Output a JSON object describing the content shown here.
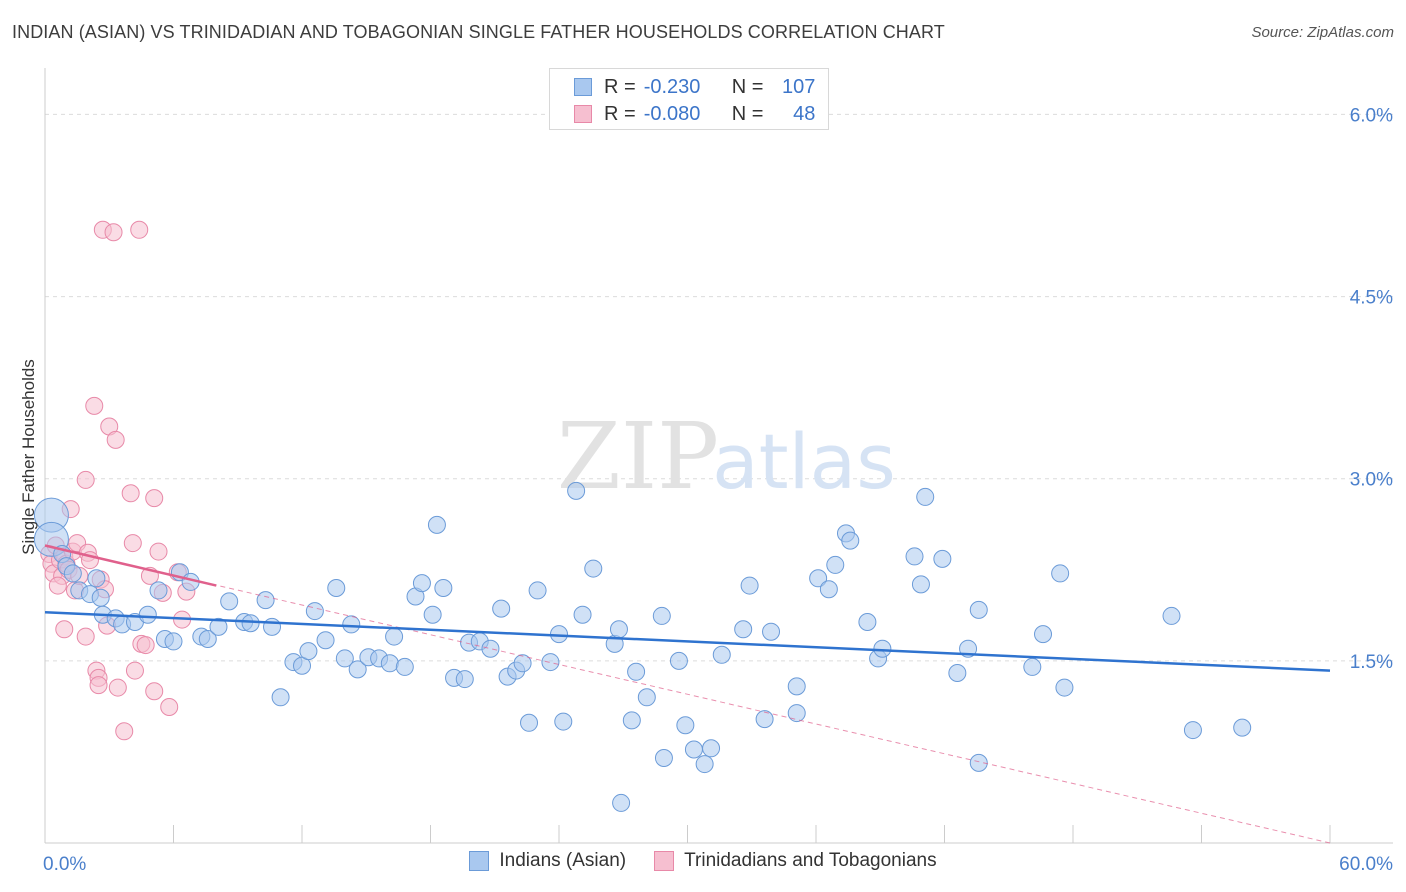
{
  "title": "INDIAN (ASIAN) VS TRINIDADIAN AND TOBAGONIAN SINGLE FATHER HOUSEHOLDS CORRELATION CHART",
  "source": "Source: ZipAtlas.com",
  "watermark": {
    "zip": "ZIP",
    "atlas": "atlas"
  },
  "colors": {
    "blue_fill": "#a9c8ef",
    "blue_stroke": "#6b9bd8",
    "blue_line": "#2f73cf",
    "pink_fill": "#f6bfd0",
    "pink_stroke": "#e889a8",
    "pink_line": "#e0608c",
    "axis_text": "#4a7fcb",
    "grid": "#dcdcdc"
  },
  "stats": [
    {
      "r_label": "R =",
      "r_value": "-0.230",
      "n_label": "N =",
      "n_value": "107"
    },
    {
      "r_label": "R =",
      "r_value": "-0.080",
      "n_label": "N =",
      "n_value": "48"
    }
  ],
  "legend": [
    {
      "label": "Indians (Asian)"
    },
    {
      "label": "Trinidadians and Tobagonians"
    }
  ],
  "chart_data": {
    "type": "scatter",
    "title": "INDIAN (ASIAN) VS TRINIDADIAN AND TOBAGONIAN SINGLE FATHER HOUSEHOLDS CORRELATION CHART",
    "xlabel": "",
    "ylabel": "Single Father Households",
    "xlim": [
      0,
      60
    ],
    "ylim": [
      0,
      6.3
    ],
    "x_tick_labels": [
      "0.0%",
      "60.0%"
    ],
    "y_ticks": [
      1.5,
      3.0,
      4.5,
      6.0
    ],
    "y_tick_labels": [
      "1.5%",
      "3.0%",
      "4.5%",
      "6.0%"
    ],
    "grid": true,
    "series": [
      {
        "name": "Indians (Asian)",
        "trend": {
          "x": [
            0,
            60
          ],
          "y": [
            1.9,
            1.42
          ]
        },
        "points": [
          {
            "x": 0.3,
            "y": 2.7,
            "big": true
          },
          {
            "x": 0.3,
            "y": 2.5,
            "big": true
          },
          {
            "x": 0.8,
            "y": 2.38
          },
          {
            "x": 1.0,
            "y": 2.28
          },
          {
            "x": 1.3,
            "y": 2.22
          },
          {
            "x": 1.6,
            "y": 2.08
          },
          {
            "x": 2.1,
            "y": 2.05
          },
          {
            "x": 2.6,
            "y": 2.02
          },
          {
            "x": 2.4,
            "y": 2.18
          },
          {
            "x": 2.7,
            "y": 1.88
          },
          {
            "x": 3.3,
            "y": 1.85
          },
          {
            "x": 3.6,
            "y": 1.8
          },
          {
            "x": 4.2,
            "y": 1.82
          },
          {
            "x": 4.8,
            "y": 1.88
          },
          {
            "x": 5.3,
            "y": 2.08
          },
          {
            "x": 5.6,
            "y": 1.68
          },
          {
            "x": 6.0,
            "y": 1.66
          },
          {
            "x": 6.3,
            "y": 2.23
          },
          {
            "x": 6.8,
            "y": 2.15
          },
          {
            "x": 7.3,
            "y": 1.7
          },
          {
            "x": 7.6,
            "y": 1.68
          },
          {
            "x": 8.1,
            "y": 1.78
          },
          {
            "x": 8.6,
            "y": 1.99
          },
          {
            "x": 9.3,
            "y": 1.82
          },
          {
            "x": 9.6,
            "y": 1.81
          },
          {
            "x": 10.3,
            "y": 2.0
          },
          {
            "x": 10.6,
            "y": 1.78
          },
          {
            "x": 11.0,
            "y": 1.2
          },
          {
            "x": 11.6,
            "y": 1.49
          },
          {
            "x": 12.0,
            "y": 1.46
          },
          {
            "x": 12.3,
            "y": 1.58
          },
          {
            "x": 12.6,
            "y": 1.91
          },
          {
            "x": 13.1,
            "y": 1.67
          },
          {
            "x": 13.6,
            "y": 2.1
          },
          {
            "x": 14.0,
            "y": 1.52
          },
          {
            "x": 14.3,
            "y": 1.8
          },
          {
            "x": 14.6,
            "y": 1.43
          },
          {
            "x": 15.1,
            "y": 1.53
          },
          {
            "x": 15.6,
            "y": 1.52
          },
          {
            "x": 16.1,
            "y": 1.48
          },
          {
            "x": 16.3,
            "y": 1.7
          },
          {
            "x": 16.8,
            "y": 1.45
          },
          {
            "x": 17.3,
            "y": 2.03
          },
          {
            "x": 17.6,
            "y": 2.14
          },
          {
            "x": 18.1,
            "y": 1.88
          },
          {
            "x": 18.3,
            "y": 2.62
          },
          {
            "x": 18.6,
            "y": 2.1
          },
          {
            "x": 19.1,
            "y": 1.36
          },
          {
            "x": 19.6,
            "y": 1.35
          },
          {
            "x": 19.8,
            "y": 1.65
          },
          {
            "x": 20.3,
            "y": 1.66
          },
          {
            "x": 20.8,
            "y": 1.6
          },
          {
            "x": 21.3,
            "y": 1.93
          },
          {
            "x": 21.6,
            "y": 1.37
          },
          {
            "x": 22.0,
            "y": 1.42
          },
          {
            "x": 22.3,
            "y": 1.48
          },
          {
            "x": 22.6,
            "y": 0.99
          },
          {
            "x": 23.0,
            "y": 2.08
          },
          {
            "x": 23.6,
            "y": 1.49
          },
          {
            "x": 24.0,
            "y": 1.72
          },
          {
            "x": 24.2,
            "y": 1.0
          },
          {
            "x": 24.8,
            "y": 2.9
          },
          {
            "x": 25.1,
            "y": 1.88
          },
          {
            "x": 25.6,
            "y": 2.26
          },
          {
            "x": 26.6,
            "y": 1.64
          },
          {
            "x": 26.8,
            "y": 1.76
          },
          {
            "x": 26.9,
            "y": 0.33
          },
          {
            "x": 27.4,
            "y": 1.01
          },
          {
            "x": 27.6,
            "y": 1.41
          },
          {
            "x": 28.1,
            "y": 1.2
          },
          {
            "x": 28.8,
            "y": 1.87
          },
          {
            "x": 28.9,
            "y": 0.7
          },
          {
            "x": 29.6,
            "y": 1.5
          },
          {
            "x": 29.9,
            "y": 0.97
          },
          {
            "x": 30.3,
            "y": 0.77
          },
          {
            "x": 30.8,
            "y": 0.65
          },
          {
            "x": 31.1,
            "y": 0.78
          },
          {
            "x": 31.6,
            "y": 1.55
          },
          {
            "x": 32.6,
            "y": 1.76
          },
          {
            "x": 32.9,
            "y": 2.12
          },
          {
            "x": 33.6,
            "y": 1.02
          },
          {
            "x": 33.9,
            "y": 1.74
          },
          {
            "x": 35.1,
            "y": 1.29
          },
          {
            "x": 35.1,
            "y": 1.07
          },
          {
            "x": 36.1,
            "y": 2.18
          },
          {
            "x": 36.6,
            "y": 2.09
          },
          {
            "x": 36.9,
            "y": 2.29
          },
          {
            "x": 37.4,
            "y": 2.55
          },
          {
            "x": 37.6,
            "y": 2.49
          },
          {
            "x": 38.4,
            "y": 1.82
          },
          {
            "x": 38.9,
            "y": 1.52
          },
          {
            "x": 39.1,
            "y": 1.6
          },
          {
            "x": 40.6,
            "y": 2.36
          },
          {
            "x": 40.9,
            "y": 2.13
          },
          {
            "x": 41.1,
            "y": 2.85
          },
          {
            "x": 41.9,
            "y": 2.34
          },
          {
            "x": 42.6,
            "y": 1.4
          },
          {
            "x": 43.1,
            "y": 1.6
          },
          {
            "x": 43.6,
            "y": 1.92
          },
          {
            "x": 43.6,
            "y": 0.66
          },
          {
            "x": 46.1,
            "y": 1.45
          },
          {
            "x": 46.6,
            "y": 1.72
          },
          {
            "x": 47.4,
            "y": 2.22
          },
          {
            "x": 47.6,
            "y": 1.28
          },
          {
            "x": 52.6,
            "y": 1.87
          },
          {
            "x": 53.6,
            "y": 0.93
          },
          {
            "x": 55.9,
            "y": 0.95
          }
        ]
      },
      {
        "name": "Trinidadians and Tobagonians",
        "trend": {
          "x": [
            0,
            8
          ],
          "y": [
            2.45,
            2.12
          ]
        },
        "trend_extended": {
          "x": [
            0,
            60
          ],
          "y": [
            2.45,
            0.0
          ]
        },
        "points": [
          {
            "x": 0.2,
            "y": 2.38
          },
          {
            "x": 0.3,
            "y": 2.3
          },
          {
            "x": 0.4,
            "y": 2.22
          },
          {
            "x": 0.5,
            "y": 2.45
          },
          {
            "x": 0.7,
            "y": 2.33
          },
          {
            "x": 0.8,
            "y": 2.2
          },
          {
            "x": 0.9,
            "y": 2.36
          },
          {
            "x": 1.0,
            "y": 2.3
          },
          {
            "x": 1.1,
            "y": 2.25
          },
          {
            "x": 1.2,
            "y": 2.75
          },
          {
            "x": 1.3,
            "y": 2.4
          },
          {
            "x": 1.4,
            "y": 2.08
          },
          {
            "x": 1.5,
            "y": 2.47
          },
          {
            "x": 1.6,
            "y": 2.2
          },
          {
            "x": 0.9,
            "y": 1.76
          },
          {
            "x": 1.9,
            "y": 1.7
          },
          {
            "x": 1.9,
            "y": 2.99
          },
          {
            "x": 2.0,
            "y": 2.39
          },
          {
            "x": 2.1,
            "y": 2.33
          },
          {
            "x": 2.3,
            "y": 3.6
          },
          {
            "x": 2.4,
            "y": 1.42
          },
          {
            "x": 2.5,
            "y": 1.36
          },
          {
            "x": 2.5,
            "y": 1.3
          },
          {
            "x": 2.6,
            "y": 2.17
          },
          {
            "x": 2.7,
            "y": 5.05
          },
          {
            "x": 2.8,
            "y": 2.09
          },
          {
            "x": 2.9,
            "y": 1.79
          },
          {
            "x": 3.0,
            "y": 3.43
          },
          {
            "x": 3.2,
            "y": 5.03
          },
          {
            "x": 3.3,
            "y": 3.32
          },
          {
            "x": 3.4,
            "y": 1.28
          },
          {
            "x": 3.7,
            "y": 0.92
          },
          {
            "x": 4.0,
            "y": 2.88
          },
          {
            "x": 4.1,
            "y": 2.47
          },
          {
            "x": 4.2,
            "y": 1.42
          },
          {
            "x": 4.4,
            "y": 5.05
          },
          {
            "x": 4.5,
            "y": 1.64
          },
          {
            "x": 4.7,
            "y": 1.63
          },
          {
            "x": 4.9,
            "y": 2.2
          },
          {
            "x": 5.1,
            "y": 2.84
          },
          {
            "x": 5.1,
            "y": 1.25
          },
          {
            "x": 5.3,
            "y": 2.4
          },
          {
            "x": 5.5,
            "y": 2.06
          },
          {
            "x": 5.8,
            "y": 1.12
          },
          {
            "x": 6.2,
            "y": 2.23
          },
          {
            "x": 6.4,
            "y": 1.84
          },
          {
            "x": 6.6,
            "y": 2.07
          },
          {
            "x": 0.6,
            "y": 2.12
          }
        ]
      }
    ]
  }
}
